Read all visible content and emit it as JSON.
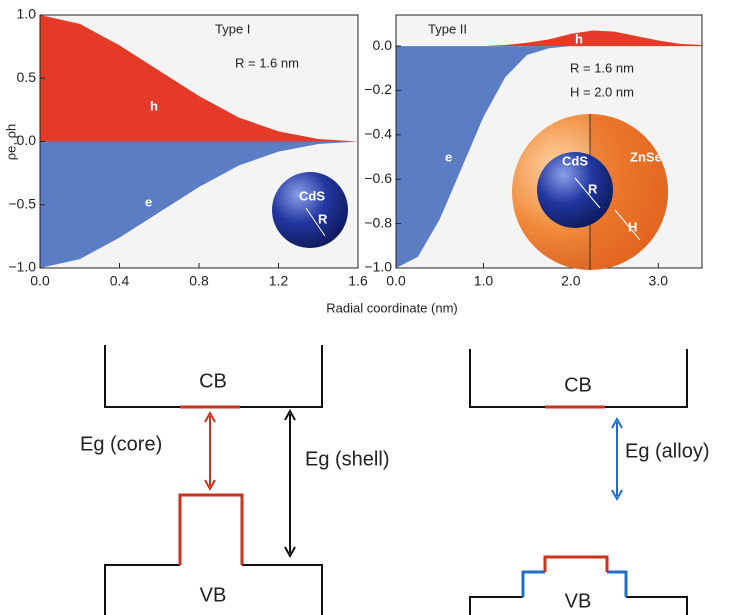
{
  "chart_data": [
    {
      "type": "area",
      "ylabel": "ρe, ρh",
      "x": [
        0,
        0.2,
        0.4,
        0.6,
        0.8,
        1.0,
        1.2,
        1.4,
        1.6
      ],
      "series": [
        {
          "name": "h",
          "color": "#e53a28",
          "values": [
            1.0,
            0.93,
            0.76,
            0.56,
            0.36,
            0.19,
            0.08,
            0.02,
            0.0
          ]
        },
        {
          "name": "e",
          "color": "#5b7dc4",
          "values": [
            -1.0,
            -0.93,
            -0.76,
            -0.56,
            -0.36,
            -0.19,
            -0.08,
            -0.02,
            0.0
          ]
        }
      ],
      "xlim": [
        0,
        1.6
      ],
      "ylim": [
        -1,
        1
      ],
      "xticks": [
        {
          "value": 0,
          "label": "0.0"
        },
        0.4,
        0.8,
        1.2,
        1.6
      ],
      "yticks": [
        {
          "value": -1,
          "label": "−1.0"
        },
        {
          "value": -0.5,
          "label": "−0.5"
        },
        {
          "value": 0,
          "label": "0.0"
        },
        {
          "value": 0.5,
          "label": "0.5"
        },
        {
          "value": 1,
          "label": "1.0"
        }
      ],
      "annotations": {
        "title": "Type I",
        "radius": "R = 1.6 nm",
        "core": "CdS",
        "core_radius": "R"
      }
    },
    {
      "type": "area",
      "x": [
        0,
        0.25,
        0.5,
        0.75,
        1.0,
        1.25,
        1.5,
        1.75,
        2.0,
        2.25,
        2.5,
        2.75,
        3.0,
        3.25,
        3.5
      ],
      "series": [
        {
          "name": "h",
          "color": "#e53a28",
          "values": [
            0,
            0,
            0,
            0,
            0,
            0.005,
            0.015,
            0.03,
            0.055,
            0.07,
            0.065,
            0.045,
            0.025,
            0.01,
            0.005
          ]
        },
        {
          "name": "e",
          "color": "#5b7dc4",
          "values": [
            -1.0,
            -0.95,
            -0.78,
            -0.55,
            -0.32,
            -0.14,
            -0.04,
            -0.01,
            0,
            0,
            0,
            0,
            0,
            0,
            0
          ]
        }
      ],
      "xlim": [
        0,
        3.5
      ],
      "ylim": [
        -1,
        0.14
      ],
      "xticks": [
        {
          "value": 0,
          "label": "0.0"
        },
        {
          "value": 1,
          "label": "1.0"
        },
        {
          "value": 2,
          "label": "2.0"
        },
        {
          "value": 3,
          "label": "3.0"
        }
      ],
      "yticks": [
        {
          "value": -1,
          "label": "−1.0"
        },
        {
          "value": -0.8,
          "label": "−0.8"
        },
        {
          "value": -0.6,
          "label": "−0.6"
        },
        {
          "value": -0.4,
          "label": "−0.4"
        },
        {
          "value": -0.2,
          "label": "−0.2"
        },
        {
          "value": 0,
          "label": "0.0"
        }
      ],
      "annotations": {
        "title": "Type II",
        "radius": "R = 1.6 nm",
        "shell": "H = 2.0 nm",
        "shell_material": "ZnSe",
        "core": "CdS",
        "core_radius": "R",
        "shell_thickness": "H"
      }
    }
  ],
  "figure": {
    "xlabel": "Radial coordinate (nm)"
  },
  "diagrams": [
    {
      "cb": "CB",
      "vb": "VB",
      "gap_core": "Eg (core)",
      "gap_shell": "Eg (shell)"
    },
    {
      "cb": "CB",
      "vb": "VB",
      "gap_alloy": "Eg (alloy)"
    }
  ]
}
